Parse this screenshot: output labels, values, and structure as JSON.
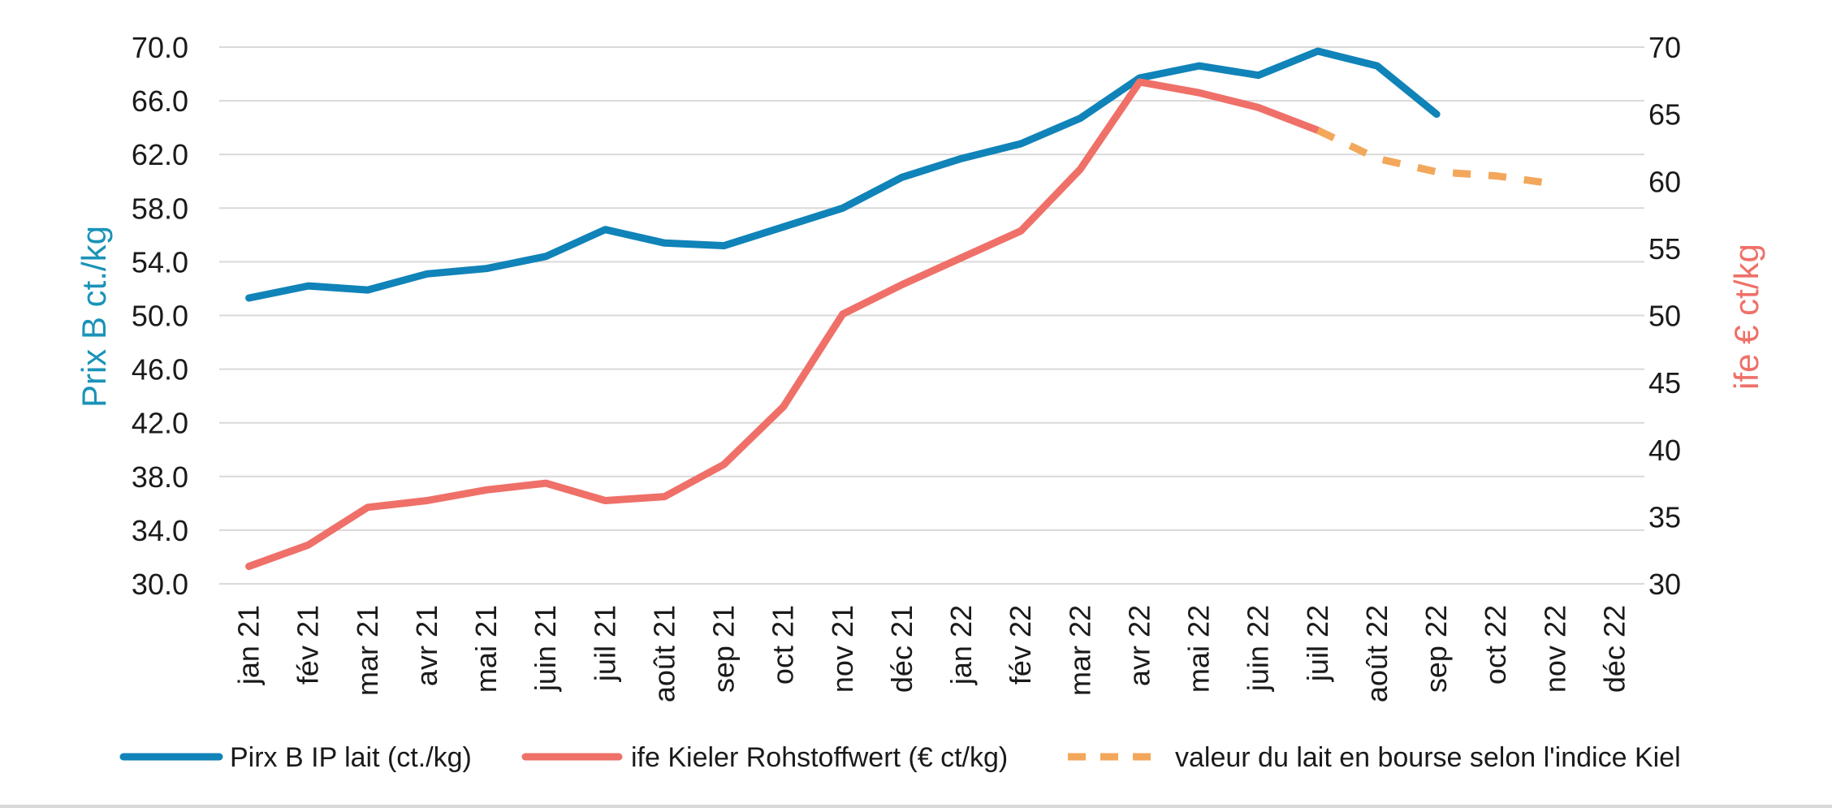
{
  "chart_data": {
    "type": "line",
    "categories": [
      "jan 21",
      "fév 21",
      "mar 21",
      "avr 21",
      "mai 21",
      "juin 21",
      "juil 21",
      "août 21",
      "sep 21",
      "oct 21",
      "nov 21",
      "déc 21",
      "jan 22",
      "fév 22",
      "mar 22",
      "avr 22",
      "mai 22",
      "juin 22",
      "juil 22",
      "août 22",
      "sep 22",
      "oct 22",
      "nov 22",
      "déc 22"
    ],
    "ylabel_left": "Prix B ct./kg",
    "ylabel_right": "ife € ct/kg",
    "ylim_left": [
      30,
      70
    ],
    "ylim_right": [
      30,
      70
    ],
    "yticks_left": [
      "70.0",
      "66.0",
      "62.0",
      "58.0",
      "54.0",
      "50.0",
      "46.0",
      "42.0",
      "38.0",
      "34.0",
      "30.0"
    ],
    "yticks_right": [
      "70",
      "65",
      "60",
      "55",
      "50",
      "45",
      "40",
      "35",
      "30"
    ],
    "grid": true,
    "legend_position": "bottom",
    "colors": {
      "prix": "#1083b8",
      "ife": "#ef7068",
      "bourse": "#f3a75b",
      "left_title": "#1b93b8",
      "right_title": "#ef7068"
    },
    "series": [
      {
        "name": "Pirx B IP lait (ct./kg)",
        "axis": "left",
        "style": "solid",
        "values": [
          51.3,
          52.2,
          51.9,
          53.1,
          53.5,
          54.4,
          56.4,
          55.4,
          55.2,
          56.6,
          58.0,
          60.3,
          61.7,
          62.8,
          64.7,
          67.7,
          68.6,
          67.9,
          69.7,
          68.6,
          65.0,
          null,
          null,
          null
        ]
      },
      {
        "name": "ife Kieler Rohstoffwert (€ ct/kg)",
        "axis": "right",
        "style": "solid",
        "values": [
          31.3,
          32.9,
          35.7,
          36.2,
          37.0,
          37.5,
          36.2,
          36.5,
          38.9,
          43.2,
          50.1,
          52.3,
          54.3,
          56.3,
          60.9,
          67.4,
          66.6,
          65.5,
          63.8,
          null,
          null,
          null,
          null,
          null
        ]
      },
      {
        "name": "valeur du lait en bourse selon l'indice Kiel",
        "axis": "right",
        "style": "dashed",
        "values": [
          null,
          null,
          null,
          null,
          null,
          null,
          null,
          null,
          null,
          null,
          null,
          null,
          null,
          null,
          null,
          null,
          null,
          null,
          63.8,
          61.7,
          60.7,
          60.4,
          59.8,
          null
        ]
      }
    ]
  }
}
